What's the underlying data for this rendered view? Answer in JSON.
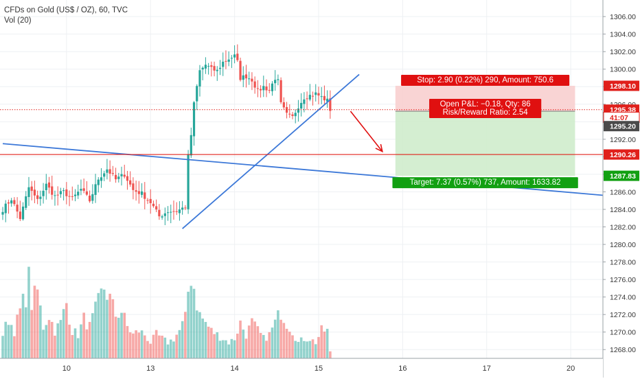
{
  "header": {
    "symbol_line": "CFDs on Gold (US$ / OZ), 60, TVC",
    "volume_line": "Vol (20)"
  },
  "colors": {
    "up": "#26a69a",
    "down": "#ef5350",
    "trendline": "#3c78d8",
    "level_line": "#e0201b",
    "stop_zone": "#f8cfcf",
    "target_zone": "#cfeccc",
    "stop_label_bg": "#e01010",
    "target_label_bg": "#12a012",
    "grid": "#eef0f3",
    "axis_text": "#333333",
    "price_tag_dark": "#4a4a4a"
  },
  "chart_data": {
    "type": "candlestick",
    "title": "CFDs on Gold (US$ / OZ), 60, TVC",
    "y_ticks": [
      1306,
      1304,
      1302,
      1300,
      1298,
      1296,
      1294,
      1292,
      1290,
      1288,
      1286,
      1284,
      1282,
      1280,
      1278,
      1276,
      1274,
      1272,
      1270,
      1268
    ],
    "y_tick_labels": [
      "1306.00",
      "1304.00",
      "1302.00",
      "1300.00",
      "1298.00",
      "1296.00",
      "1294.00",
      "1292.00",
      "1290.00",
      "1288.00",
      "1286.00",
      "1284.00",
      "1282.00",
      "1280.00",
      "1278.00",
      "1276.00",
      "1274.00",
      "1272.00",
      "1270.00",
      "1268.00"
    ],
    "ylim": [
      1267,
      1307.5
    ],
    "x_ticks": [
      {
        "label": "10",
        "bar": 22
      },
      {
        "label": "13",
        "bar": 51
      },
      {
        "label": "14",
        "bar": 80
      },
      {
        "label": "15",
        "bar": 109
      },
      {
        "label": "16",
        "bar": 138
      },
      {
        "label": "17",
        "bar": 167
      },
      {
        "label": "20",
        "bar": 196
      }
    ],
    "close_anchors": [
      [
        0,
        1284.0
      ],
      [
        3,
        1285.2
      ],
      [
        6,
        1283.0
      ],
      [
        9,
        1286.5
      ],
      [
        12,
        1285.0
      ],
      [
        15,
        1286.8
      ],
      [
        18,
        1285.5
      ],
      [
        21,
        1286.0
      ],
      [
        24,
        1285.2
      ],
      [
        27,
        1286.3
      ],
      [
        30,
        1285.0
      ],
      [
        33,
        1287.5
      ],
      [
        36,
        1288.6
      ],
      [
        39,
        1287.4
      ],
      [
        42,
        1288.0
      ],
      [
        45,
        1286.2
      ],
      [
        48,
        1285.8
      ],
      [
        51,
        1284.8
      ],
      [
        54,
        1283.2
      ],
      [
        57,
        1283.8
      ],
      [
        60,
        1283.8
      ],
      [
        63,
        1284.3
      ],
      [
        64,
        1290.0
      ],
      [
        65,
        1292.5
      ],
      [
        66,
        1296.0
      ],
      [
        67,
        1298.0
      ],
      [
        68,
        1299.8
      ],
      [
        70,
        1300.5
      ],
      [
        72,
        1300.0
      ],
      [
        74,
        1299.8
      ],
      [
        76,
        1300.8
      ],
      [
        78,
        1301.2
      ],
      [
        80,
        1301.5
      ],
      [
        81,
        1300.8
      ],
      [
        82,
        1299.0
      ],
      [
        84,
        1299.2
      ],
      [
        86,
        1298.8
      ],
      [
        88,
        1297.5
      ],
      [
        90,
        1298.0
      ],
      [
        92,
        1297.6
      ],
      [
        94,
        1299.0
      ],
      [
        95,
        1298.6
      ],
      [
        96,
        1296.0
      ],
      [
        98,
        1294.8
      ],
      [
        100,
        1294.5
      ],
      [
        102,
        1295.8
      ],
      [
        104,
        1296.8
      ],
      [
        106,
        1297.0
      ],
      [
        108,
        1297.2
      ],
      [
        110,
        1296.8
      ],
      [
        112,
        1296.4
      ],
      [
        113,
        1295.4
      ]
    ],
    "volume_anchors": [
      [
        0,
        0.3
      ],
      [
        2,
        0.5
      ],
      [
        4,
        0.35
      ],
      [
        6,
        0.6
      ],
      [
        8,
        0.8
      ],
      [
        9,
        1.0
      ],
      [
        10,
        0.7
      ],
      [
        12,
        0.85
      ],
      [
        14,
        0.4
      ],
      [
        16,
        0.55
      ],
      [
        18,
        0.35
      ],
      [
        20,
        0.45
      ],
      [
        22,
        0.7
      ],
      [
        24,
        0.35
      ],
      [
        26,
        0.3
      ],
      [
        28,
        0.5
      ],
      [
        30,
        0.4
      ],
      [
        33,
        0.7
      ],
      [
        35,
        0.9
      ],
      [
        37,
        0.75
      ],
      [
        39,
        0.55
      ],
      [
        41,
        0.6
      ],
      [
        43,
        0.4
      ],
      [
        45,
        0.3
      ],
      [
        47,
        0.35
      ],
      [
        49,
        0.3
      ],
      [
        51,
        0.2
      ],
      [
        53,
        0.3
      ],
      [
        55,
        0.25
      ],
      [
        57,
        0.2
      ],
      [
        59,
        0.25
      ],
      [
        61,
        0.35
      ],
      [
        63,
        0.5
      ],
      [
        64,
        0.85
      ],
      [
        65,
        1.05
      ],
      [
        66,
        0.9
      ],
      [
        67,
        0.7
      ],
      [
        68,
        0.55
      ],
      [
        70,
        0.45
      ],
      [
        72,
        0.35
      ],
      [
        74,
        0.3
      ],
      [
        76,
        0.25
      ],
      [
        78,
        0.2
      ],
      [
        80,
        0.25
      ],
      [
        82,
        0.45
      ],
      [
        84,
        0.3
      ],
      [
        86,
        0.45
      ],
      [
        88,
        0.35
      ],
      [
        90,
        0.25
      ],
      [
        92,
        0.3
      ],
      [
        94,
        0.45
      ],
      [
        96,
        0.6
      ],
      [
        98,
        0.45
      ],
      [
        100,
        0.35
      ],
      [
        102,
        0.2
      ],
      [
        104,
        0.25
      ],
      [
        106,
        0.25
      ],
      [
        108,
        0.2
      ],
      [
        110,
        0.35
      ],
      [
        112,
        0.35
      ],
      [
        113,
        0.08
      ]
    ],
    "trendlines": [
      {
        "name": "lower-trendline",
        "from": [
          0,
          1291.5
        ],
        "to": [
          218,
          1285.3
        ]
      },
      {
        "name": "rising-trendline",
        "from": [
          62,
          1281.8
        ],
        "to": [
          123,
          1299.4
        ]
      }
    ],
    "horizontal_level": {
      "price": 1290.26,
      "label": "1290.26"
    },
    "arrow": {
      "from": [
        120,
        1295.2
      ],
      "to": [
        131,
        1290.6
      ]
    },
    "position": {
      "start_bar": 135.5,
      "end_bar": 197.5,
      "entry": 1295.2,
      "stop": 1298.1,
      "target": 1287.83,
      "current": 1295.38,
      "stop_label": "Stop: 2.90 (0.22%) 290, Amount: 750.6",
      "target_label": "Target: 7.37 (0.57%) 737, Amount: 1633.82",
      "pnl_label": "Open P&L: −0.18, Qty: 86",
      "rr_label": "Risk/Reward Ratio: 2.54"
    },
    "price_tags": [
      {
        "price": 1298.1,
        "label": "1298.10",
        "style": "red"
      },
      {
        "price": 1295.38,
        "label": "1295.38",
        "style": "red"
      },
      {
        "price": 1294.5,
        "label": "41:07",
        "style": "outline-red"
      },
      {
        "price": 1293.5,
        "label": "1295.20",
        "style": "dark"
      },
      {
        "price": 1290.26,
        "label": "1290.26",
        "style": "red"
      },
      {
        "price": 1287.83,
        "label": "1287.83",
        "style": "green"
      }
    ]
  }
}
